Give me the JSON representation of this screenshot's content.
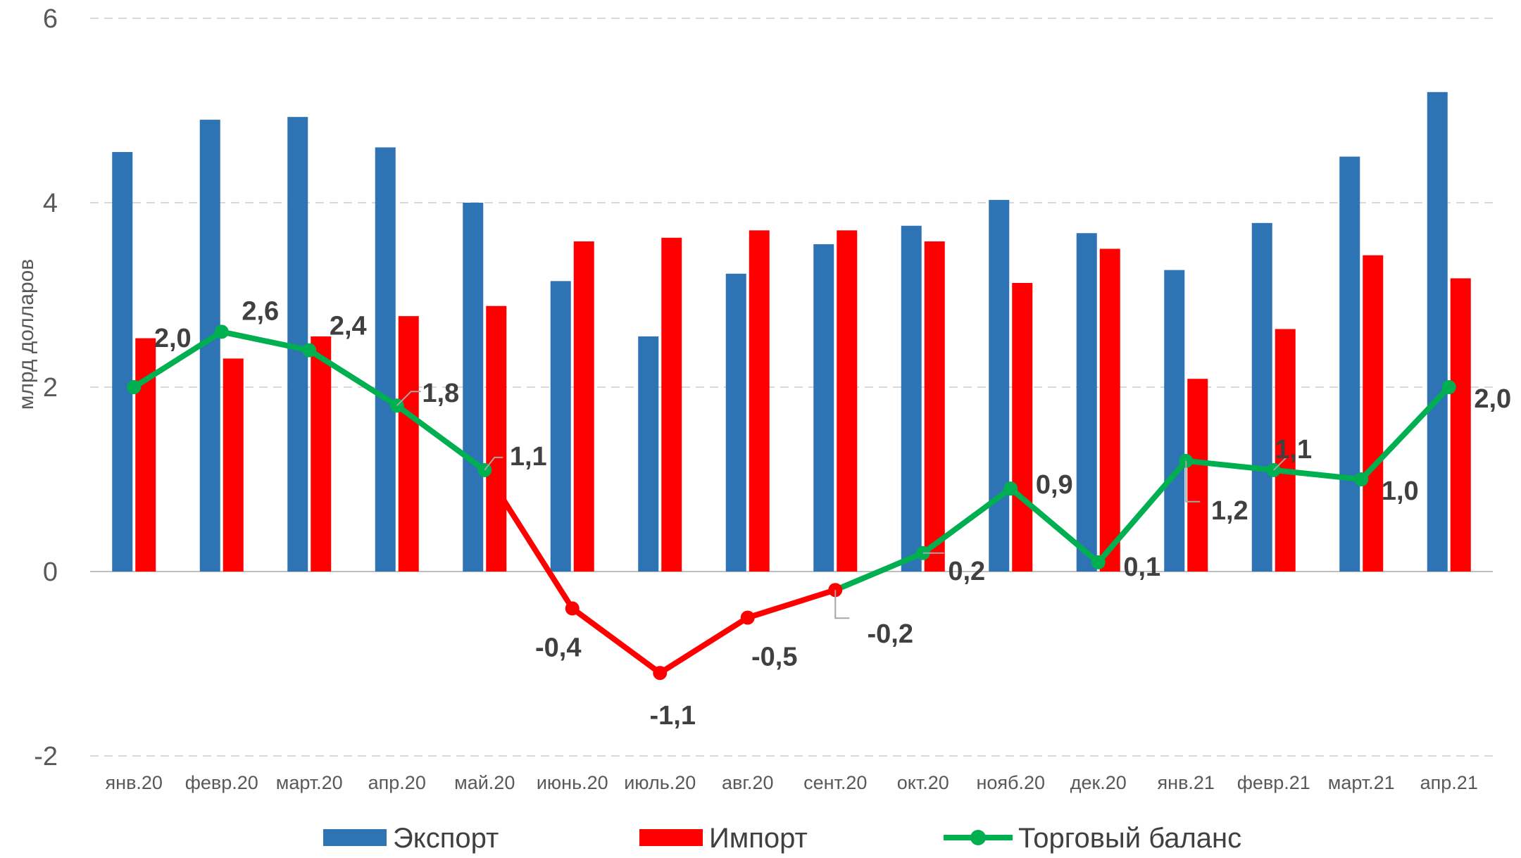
{
  "chart_data": {
    "type": "bar+line",
    "categories": [
      "янв.20",
      "февр.20",
      "март.20",
      "апр.20",
      "май.20",
      "июнь.20",
      "июль.20",
      "авг.20",
      "сент.20",
      "окт.20",
      "нояб.20",
      "дек.20",
      "янв.21",
      "февр.21",
      "март.21",
      "апр.21"
    ],
    "series": [
      {
        "name": "Экспорт",
        "type": "bar",
        "color": "#2E74B5",
        "values": [
          4.55,
          4.9,
          4.93,
          4.6,
          4.0,
          3.15,
          2.55,
          3.23,
          3.55,
          3.75,
          4.03,
          3.67,
          3.27,
          3.78,
          4.5,
          5.2
        ]
      },
      {
        "name": "Импорт",
        "type": "bar",
        "color": "#FF0000",
        "values": [
          2.53,
          2.31,
          2.55,
          2.77,
          2.88,
          3.58,
          3.62,
          3.7,
          3.7,
          3.58,
          3.13,
          3.5,
          2.09,
          2.63,
          3.43,
          3.18
        ]
      },
      {
        "name": "Торговый баланс",
        "type": "line",
        "color": "#00B050",
        "negative_color": "#FF0000",
        "values": [
          2.0,
          2.6,
          2.4,
          1.8,
          1.1,
          -0.4,
          -1.1,
          -0.5,
          -0.2,
          0.2,
          0.9,
          0.1,
          1.2,
          1.1,
          1.0,
          2.0
        ],
        "labels": [
          "2,0",
          "2,6",
          "2,4",
          "1,8",
          "1,1",
          "-0,4",
          "-1,1",
          "-0,5",
          "-0,2",
          "0,2",
          "0,9",
          "0,1",
          "1,2",
          "1,1",
          "1,0",
          "2,0"
        ]
      }
    ],
    "ylabel": "млрд долларов",
    "ylim": [
      -2,
      6
    ],
    "yticks": [
      6,
      4,
      2,
      0,
      -2
    ],
    "ytick_labels": [
      "6",
      "4",
      "2",
      "0",
      "-2"
    ],
    "grid": true,
    "legend": [
      "Экспорт",
      "Импорт",
      "Торговый баланс"
    ],
    "legend_position": "bottom"
  }
}
